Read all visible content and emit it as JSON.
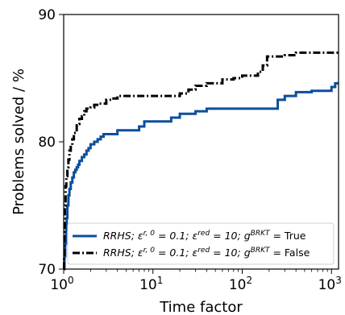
{
  "chart_data": {
    "type": "line",
    "xlabel": "Time factor",
    "ylabel": "Problems solved / %",
    "xscale": "log",
    "xlim": [
      1,
      1200
    ],
    "ylim": [
      70,
      90
    ],
    "xticks": [
      {
        "value": 1,
        "base": "10",
        "exp": "0"
      },
      {
        "value": 10,
        "base": "10",
        "exp": "1"
      },
      {
        "value": 100,
        "base": "10",
        "exp": "2"
      },
      {
        "value": 1000,
        "base": "10",
        "exp": "3"
      }
    ],
    "yticks": [
      70,
      80,
      90
    ],
    "grid": false,
    "legend_position": "lower-right",
    "series": [
      {
        "name": "RRHS; ε^{r,0} = 0.1; ε^{red} = 10; g^{BRKT} = True",
        "legend": {
          "prefix": "RRHS; ε",
          "s1": "r, 0",
          "m1": " = 0.1; ε",
          "s2": "red",
          "m2": " =  10; g",
          "s3": "BRKT",
          "suffix": " = True"
        },
        "color": "#0a4f9c",
        "style": "solid",
        "x": [
          1.0,
          1.02,
          1.04,
          1.06,
          1.08,
          1.1,
          1.13,
          1.16,
          1.2,
          1.25,
          1.3,
          1.35,
          1.4,
          1.45,
          1.5,
          1.6,
          1.7,
          1.8,
          1.9,
          2.0,
          2.2,
          2.4,
          2.6,
          2.8,
          3.0,
          3.5,
          4.0,
          5.0,
          6.0,
          7.0,
          8.0,
          10.0,
          12.0,
          14.0,
          16.0,
          18.0,
          20.0,
          25.0,
          30.0,
          40.0,
          60.0,
          100.0,
          150.0,
          180.0,
          200.0,
          250.0,
          300.0,
          400.0,
          600.0,
          900.0,
          1000.0,
          1100.0,
          1200.0
        ],
        "y": [
          70.0,
          71.0,
          72.0,
          73.0,
          74.0,
          75.0,
          75.8,
          76.3,
          76.8,
          77.2,
          77.6,
          77.8,
          78.0,
          78.2,
          78.5,
          78.8,
          79.0,
          79.3,
          79.5,
          79.8,
          80.0,
          80.2,
          80.4,
          80.6,
          80.6,
          80.6,
          80.9,
          80.9,
          80.9,
          81.2,
          81.6,
          81.6,
          81.6,
          81.6,
          81.9,
          81.9,
          82.2,
          82.2,
          82.4,
          82.6,
          82.6,
          82.6,
          82.6,
          82.6,
          82.6,
          83.3,
          83.6,
          83.9,
          84.0,
          84.0,
          84.3,
          84.6,
          84.6
        ]
      },
      {
        "name": "RRHS; ε^{r,0} = 0.1; ε^{red} = 10; g^{BRKT} = False",
        "legend": {
          "prefix": "RRHS; ε",
          "s1": "r, 0",
          "m1": " = 0.1; ε",
          "s2": "red",
          "m2": " =  10; g",
          "s3": "BRKT",
          "suffix": " = False"
        },
        "color": "#000000",
        "style": "dashdot",
        "x": [
          1.0,
          1.01,
          1.02,
          1.03,
          1.05,
          1.07,
          1.1,
          1.13,
          1.16,
          1.2,
          1.25,
          1.3,
          1.4,
          1.5,
          1.6,
          1.7,
          1.8,
          2.0,
          2.2,
          2.5,
          2.8,
          3.0,
          3.5,
          4.0,
          5.0,
          7.0,
          10.0,
          15.0,
          20.0,
          25.0,
          30.0,
          40.0,
          60.0,
          80.0,
          100.0,
          150.0,
          170.0,
          190.0,
          220.0,
          300.0,
          400.0,
          600.0,
          800.0,
          1000.0,
          1200.0
        ],
        "y": [
          70.0,
          71.0,
          73.0,
          75.0,
          76.5,
          77.3,
          78.0,
          78.6,
          79.3,
          79.6,
          80.2,
          80.7,
          81.4,
          81.8,
          82.0,
          82.4,
          82.6,
          82.7,
          82.9,
          83.0,
          83.0,
          83.3,
          83.4,
          83.6,
          83.6,
          83.6,
          83.6,
          83.6,
          83.8,
          84.1,
          84.4,
          84.6,
          84.9,
          85.0,
          85.2,
          85.5,
          86.0,
          86.7,
          86.7,
          86.8,
          87.0,
          87.0,
          87.0,
          87.0,
          87.0
        ]
      }
    ]
  }
}
